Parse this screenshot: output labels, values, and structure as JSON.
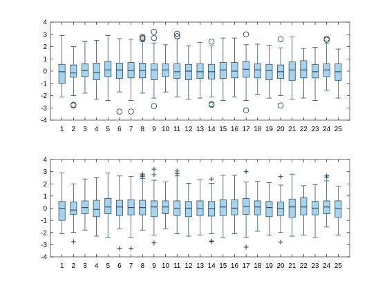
{
  "colors": {
    "box_fill": "#a6d3ee",
    "box_edge": "#2e4d61",
    "axis": "#000000",
    "background": "#ffffff"
  },
  "chart_data": [
    {
      "type": "box",
      "outlier_marker": "circle",
      "ylim": [
        -4,
        4
      ],
      "yticks": [
        "-4",
        "-3",
        "-2",
        "-1",
        "0",
        "1",
        "2",
        "3",
        "4"
      ],
      "categories": [
        "1",
        "2",
        "3",
        "4",
        "5",
        "6",
        "7",
        "8",
        "9",
        "10",
        "11",
        "12",
        "13",
        "14",
        "15",
        "16",
        "17",
        "18",
        "19",
        "20",
        "21",
        "22",
        "23",
        "24",
        "25"
      ],
      "boxes": [
        {
          "low": -2.1,
          "q1": -1.0,
          "median": -0.05,
          "q3": 0.55,
          "high": 2.9,
          "outliers": []
        },
        {
          "low": -2.0,
          "q1": -0.5,
          "median": -0.15,
          "q3": 0.5,
          "high": 2.0,
          "outliers": [
            -2.75,
            -2.8
          ]
        },
        {
          "low": -1.8,
          "q1": -0.45,
          "median": 0.05,
          "q3": 0.6,
          "high": 2.4,
          "outliers": []
        },
        {
          "low": -2.3,
          "q1": -0.7,
          "median": -0.1,
          "q3": 0.65,
          "high": 2.5,
          "outliers": []
        },
        {
          "low": -2.4,
          "q1": -0.45,
          "median": 0.1,
          "q3": 0.8,
          "high": 2.9,
          "outliers": []
        },
        {
          "low": -1.7,
          "q1": -0.6,
          "median": 0.1,
          "q3": 0.65,
          "high": 2.65,
          "outliers": [
            -3.3
          ]
        },
        {
          "low": -2.4,
          "q1": -0.55,
          "median": 0.05,
          "q3": 0.7,
          "high": 2.6,
          "outliers": [
            -3.3
          ]
        },
        {
          "low": -1.8,
          "q1": -0.55,
          "median": 0.05,
          "q3": 0.65,
          "high": 2.45,
          "outliers": [
            2.6,
            2.7,
            2.8
          ]
        },
        {
          "low": -2.2,
          "q1": -0.7,
          "median": 0.1,
          "q3": 0.6,
          "high": 2.3,
          "outliers": [
            -2.85,
            2.7,
            3.2
          ]
        },
        {
          "low": -1.7,
          "q1": -0.45,
          "median": 0.1,
          "q3": 0.6,
          "high": 2.15,
          "outliers": []
        },
        {
          "low": -2.1,
          "q1": -0.6,
          "median": -0.05,
          "q3": 0.6,
          "high": 2.65,
          "outliers": [
            2.85,
            3.05
          ]
        },
        {
          "low": -2.3,
          "q1": -0.7,
          "median": 0.0,
          "q3": 0.55,
          "high": 2.05,
          "outliers": []
        },
        {
          "low": -2.2,
          "q1": -0.6,
          "median": -0.05,
          "q3": 0.6,
          "high": 2.35,
          "outliers": []
        },
        {
          "low": -2.1,
          "q1": -0.65,
          "median": -0.05,
          "q3": 0.55,
          "high": 2.05,
          "outliers": [
            -2.7,
            -2.75,
            2.4
          ]
        },
        {
          "low": -2.4,
          "q1": -0.6,
          "median": 0.1,
          "q3": 0.7,
          "high": 2.7,
          "outliers": []
        },
        {
          "low": -2.1,
          "q1": -0.55,
          "median": 0.0,
          "q3": 0.7,
          "high": 2.7,
          "outliers": []
        },
        {
          "low": -2.4,
          "q1": -0.5,
          "median": 0.15,
          "q3": 0.8,
          "high": 2.15,
          "outliers": [
            -3.2,
            3.0
          ]
        },
        {
          "low": -1.9,
          "q1": -0.55,
          "median": 0.1,
          "q3": 0.6,
          "high": 2.2,
          "outliers": []
        },
        {
          "low": -2.2,
          "q1": -0.7,
          "median": 0.05,
          "q3": 0.55,
          "high": 2.1,
          "outliers": []
        },
        {
          "low": -2.0,
          "q1": -0.6,
          "median": -0.05,
          "q3": 0.5,
          "high": 1.9,
          "outliers": [
            -2.8,
            2.6
          ]
        },
        {
          "low": -2.3,
          "q1": -0.75,
          "median": 0.1,
          "q3": 0.75,
          "high": 2.8,
          "outliers": []
        },
        {
          "low": -2.2,
          "q1": -0.55,
          "median": 0.1,
          "q3": 0.85,
          "high": 1.85,
          "outliers": []
        },
        {
          "low": -2.4,
          "q1": -0.55,
          "median": -0.05,
          "q3": 0.55,
          "high": 1.95,
          "outliers": []
        },
        {
          "low": -1.55,
          "q1": -0.45,
          "median": 0.1,
          "q3": 0.6,
          "high": 2.25,
          "outliers": [
            2.55,
            2.65
          ]
        },
        {
          "low": -2.2,
          "q1": -0.75,
          "median": -0.05,
          "q3": 0.6,
          "high": 1.8,
          "outliers": []
        }
      ]
    },
    {
      "type": "box",
      "outlier_marker": "plus",
      "ylim": [
        -4,
        4
      ],
      "yticks": [
        "-4",
        "-3",
        "-2",
        "-1",
        "0",
        "1",
        "2",
        "3",
        "4"
      ],
      "categories": [
        "1",
        "2",
        "3",
        "4",
        "5",
        "6",
        "7",
        "8",
        "9",
        "10",
        "11",
        "12",
        "13",
        "14",
        "15",
        "16",
        "17",
        "18",
        "19",
        "20",
        "21",
        "22",
        "23",
        "24",
        "25"
      ],
      "boxes": [
        {
          "low": -2.1,
          "q1": -1.0,
          "median": -0.05,
          "q3": 0.55,
          "high": 2.9,
          "outliers": []
        },
        {
          "low": -2.0,
          "q1": -0.5,
          "median": -0.15,
          "q3": 0.5,
          "high": 2.0,
          "outliers": [
            -2.75
          ]
        },
        {
          "low": -1.8,
          "q1": -0.45,
          "median": 0.05,
          "q3": 0.6,
          "high": 2.4,
          "outliers": []
        },
        {
          "low": -2.3,
          "q1": -0.7,
          "median": -0.1,
          "q3": 0.65,
          "high": 2.5,
          "outliers": []
        },
        {
          "low": -2.4,
          "q1": -0.45,
          "median": 0.1,
          "q3": 0.8,
          "high": 2.9,
          "outliers": []
        },
        {
          "low": -1.7,
          "q1": -0.6,
          "median": 0.1,
          "q3": 0.65,
          "high": 2.65,
          "outliers": [
            -3.3
          ]
        },
        {
          "low": -2.4,
          "q1": -0.55,
          "median": 0.05,
          "q3": 0.7,
          "high": 2.6,
          "outliers": [
            -3.3
          ]
        },
        {
          "low": -1.8,
          "q1": -0.55,
          "median": 0.05,
          "q3": 0.65,
          "high": 2.45,
          "outliers": [
            2.6,
            2.7,
            2.8
          ]
        },
        {
          "low": -2.2,
          "q1": -0.7,
          "median": 0.1,
          "q3": 0.6,
          "high": 2.3,
          "outliers": [
            -2.85,
            2.75,
            3.2
          ]
        },
        {
          "low": -1.7,
          "q1": -0.45,
          "median": 0.1,
          "q3": 0.6,
          "high": 2.15,
          "outliers": []
        },
        {
          "low": -2.1,
          "q1": -0.6,
          "median": -0.05,
          "q3": 0.6,
          "high": 2.65,
          "outliers": [
            2.85,
            3.05
          ]
        },
        {
          "low": -2.3,
          "q1": -0.7,
          "median": 0.0,
          "q3": 0.55,
          "high": 2.05,
          "outliers": []
        },
        {
          "low": -2.2,
          "q1": -0.6,
          "median": -0.05,
          "q3": 0.6,
          "high": 2.35,
          "outliers": []
        },
        {
          "low": -2.1,
          "q1": -0.65,
          "median": -0.05,
          "q3": 0.55,
          "high": 2.05,
          "outliers": [
            -2.7,
            -2.75,
            2.4
          ]
        },
        {
          "low": -2.4,
          "q1": -0.6,
          "median": 0.1,
          "q3": 0.7,
          "high": 2.7,
          "outliers": []
        },
        {
          "low": -2.1,
          "q1": -0.55,
          "median": 0.0,
          "q3": 0.7,
          "high": 2.7,
          "outliers": []
        },
        {
          "low": -2.4,
          "q1": -0.5,
          "median": 0.15,
          "q3": 0.8,
          "high": 2.15,
          "outliers": [
            -3.2,
            3.0
          ]
        },
        {
          "low": -1.9,
          "q1": -0.55,
          "median": 0.1,
          "q3": 0.6,
          "high": 2.2,
          "outliers": []
        },
        {
          "low": -2.2,
          "q1": -0.7,
          "median": 0.05,
          "q3": 0.55,
          "high": 2.1,
          "outliers": []
        },
        {
          "low": -2.0,
          "q1": -0.6,
          "median": -0.05,
          "q3": 0.5,
          "high": 1.9,
          "outliers": [
            -2.8,
            2.6
          ]
        },
        {
          "low": -2.3,
          "q1": -0.75,
          "median": 0.1,
          "q3": 0.75,
          "high": 2.8,
          "outliers": []
        },
        {
          "low": -2.2,
          "q1": -0.55,
          "median": 0.1,
          "q3": 0.85,
          "high": 1.85,
          "outliers": []
        },
        {
          "low": -2.4,
          "q1": -0.55,
          "median": -0.05,
          "q3": 0.55,
          "high": 1.95,
          "outliers": []
        },
        {
          "low": -1.55,
          "q1": -0.45,
          "median": 0.1,
          "q3": 0.6,
          "high": 2.25,
          "outliers": [
            2.55,
            2.65
          ]
        },
        {
          "low": -2.2,
          "q1": -0.75,
          "median": -0.05,
          "q3": 0.6,
          "high": 1.8,
          "outliers": []
        }
      ]
    }
  ]
}
